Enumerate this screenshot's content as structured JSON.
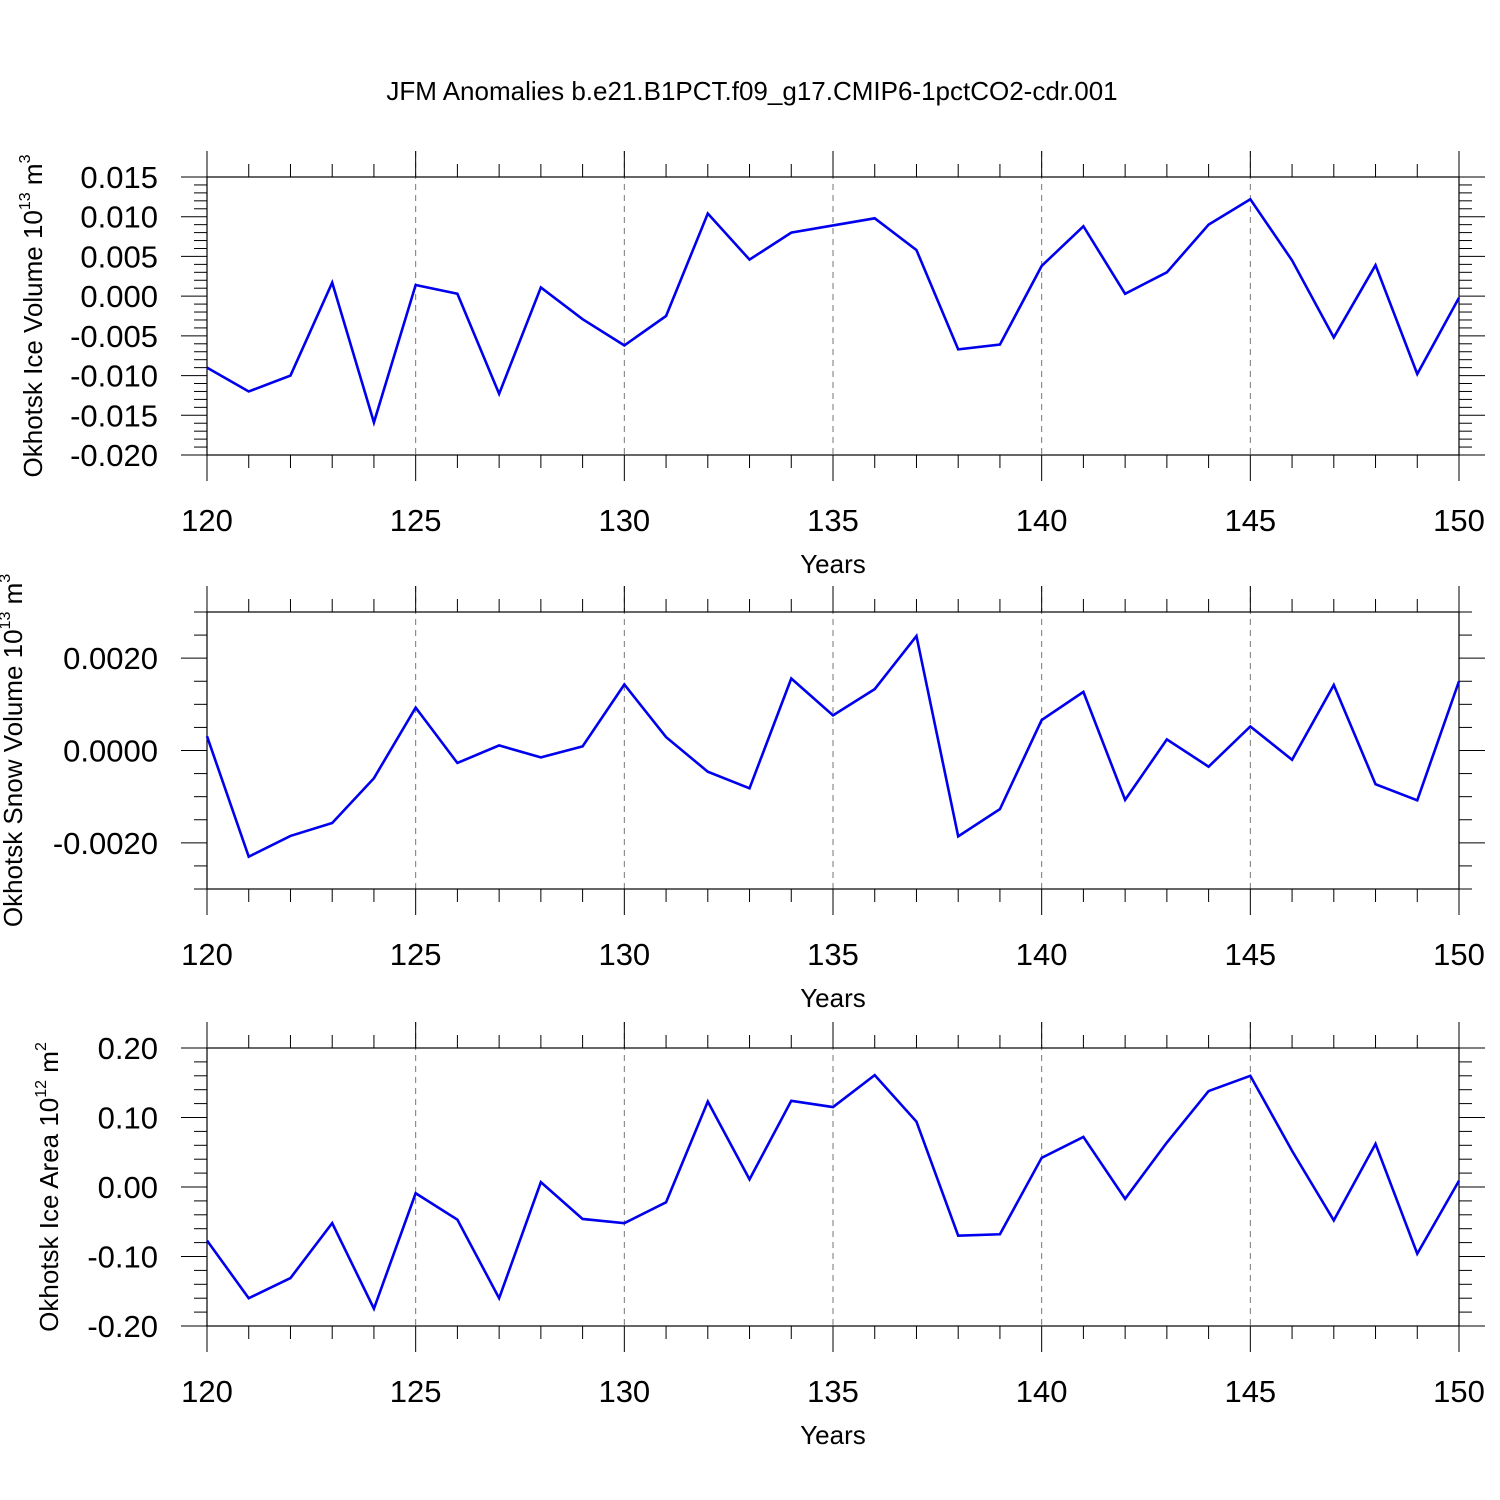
{
  "title": "JFM Anomalies b.e21.B1PCT.f09_g17.CMIP6-1pctCO2-cdr.001",
  "series_color": "#0000ee",
  "chart_data": [
    {
      "type": "line",
      "xlabel": "Years",
      "ylabel": "Okhotsk Ice Volume 10",
      "ylabel_exp": "13",
      "ylabel_unit": " m",
      "ylabel_unit_exp": "3",
      "xlim": [
        120,
        150
      ],
      "ylim": [
        -0.02,
        0.015
      ],
      "x_ticks": [
        120,
        125,
        130,
        135,
        140,
        145,
        150
      ],
      "x_tick_labels": [
        "120",
        "125",
        "130",
        "135",
        "140",
        "145",
        "150"
      ],
      "y_ticks": [
        -0.02,
        -0.015,
        -0.01,
        -0.005,
        0.0,
        0.005,
        0.01,
        0.015
      ],
      "y_tick_labels": [
        "-0.020",
        "-0.015",
        "-0.010",
        "-0.005",
        "0.000",
        "0.005",
        "0.010",
        "0.015"
      ],
      "grid": "vertical dashed at major x ticks",
      "x": [
        120,
        121,
        122,
        123,
        124,
        125,
        126,
        127,
        128,
        129,
        130,
        131,
        132,
        133,
        134,
        135,
        136,
        137,
        138,
        139,
        140,
        141,
        142,
        143,
        144,
        145,
        146,
        147,
        148,
        149,
        150
      ],
      "y": [
        -0.009,
        -0.012,
        -0.01,
        0.0017,
        -0.0159,
        0.0014,
        0.0003,
        -0.0123,
        0.0011,
        -0.0029,
        -0.0062,
        -0.0025,
        0.0104,
        0.0046,
        0.008,
        0.0089,
        0.0098,
        0.0058,
        -0.0067,
        -0.0061,
        0.0038,
        0.0088,
        0.0003,
        0.003,
        0.009,
        0.0122,
        0.0045,
        -0.0052,
        0.0039,
        -0.0098,
        -0.0002
      ]
    },
    {
      "type": "line",
      "xlabel": "Years",
      "ylabel": "Okhotsk Snow Volume 10",
      "ylabel_exp": "13",
      "ylabel_unit": " m",
      "ylabel_unit_exp": "3",
      "xlim": [
        120,
        150
      ],
      "ylim": [
        -0.003,
        0.003
      ],
      "x_ticks": [
        120,
        125,
        130,
        135,
        140,
        145,
        150
      ],
      "x_tick_labels": [
        "120",
        "125",
        "130",
        "135",
        "140",
        "145",
        "150"
      ],
      "y_ticks": [
        -0.002,
        0.0,
        0.002
      ],
      "y_tick_labels": [
        "-0.0020",
        "0.0000",
        "0.0020"
      ],
      "grid": "vertical dashed at major x ticks",
      "x": [
        120,
        121,
        122,
        123,
        124,
        125,
        126,
        127,
        128,
        129,
        130,
        131,
        132,
        133,
        134,
        135,
        136,
        137,
        138,
        139,
        140,
        141,
        142,
        143,
        144,
        145,
        146,
        147,
        148,
        149,
        150
      ],
      "y": [
        0.00031,
        -0.0023,
        -0.00185,
        -0.00157,
        -0.0006,
        0.00093,
        -0.00027,
        0.00011,
        -0.00015,
        9e-05,
        0.00143,
        0.00029,
        -0.00046,
        -0.00082,
        0.00156,
        0.00076,
        0.00133,
        0.00248,
        -0.00186,
        -0.00127,
        0.00066,
        0.00127,
        -0.00107,
        0.00024,
        -0.00035,
        0.00052,
        -0.0002,
        0.00142,
        -0.00073,
        -0.00108,
        0.0015
      ]
    },
    {
      "type": "line",
      "xlabel": "Years",
      "ylabel": "Okhotsk Ice Area 10",
      "ylabel_exp": "12",
      "ylabel_unit": " m",
      "ylabel_unit_exp": "2",
      "xlim": [
        120,
        150
      ],
      "ylim": [
        -0.2,
        0.2
      ],
      "x_ticks": [
        120,
        125,
        130,
        135,
        140,
        145,
        150
      ],
      "x_tick_labels": [
        "120",
        "125",
        "130",
        "135",
        "140",
        "145",
        "150"
      ],
      "y_ticks": [
        -0.2,
        -0.1,
        0.0,
        0.1,
        0.2
      ],
      "y_tick_labels": [
        "-0.20",
        "-0.10",
        "0.00",
        "0.10",
        "0.20"
      ],
      "grid": "vertical dashed at major x ticks",
      "x": [
        120,
        121,
        122,
        123,
        124,
        125,
        126,
        127,
        128,
        129,
        130,
        131,
        132,
        133,
        134,
        135,
        136,
        137,
        138,
        139,
        140,
        141,
        142,
        143,
        144,
        145,
        146,
        147,
        148,
        149,
        150
      ],
      "y": [
        -0.077,
        -0.16,
        -0.131,
        -0.052,
        -0.175,
        -0.009,
        -0.047,
        -0.16,
        0.007,
        -0.046,
        -0.052,
        -0.022,
        0.123,
        0.011,
        0.124,
        0.115,
        0.161,
        0.094,
        -0.07,
        -0.068,
        0.042,
        0.072,
        -0.017,
        0.064,
        0.138,
        0.16,
        0.052,
        -0.048,
        0.062,
        -0.096,
        0.009
      ]
    }
  ]
}
